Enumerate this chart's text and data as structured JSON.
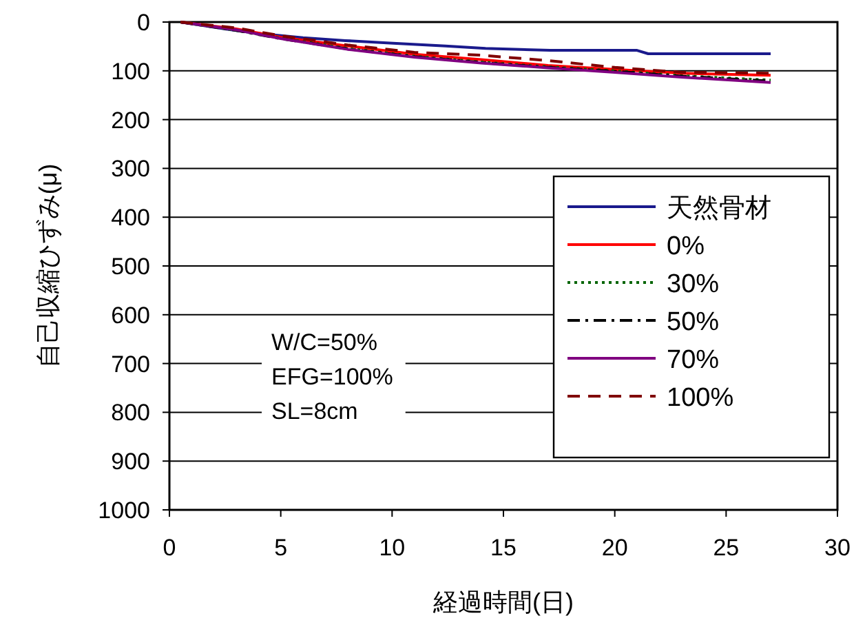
{
  "chart_data": {
    "type": "line",
    "xlabel": "経過時間(日)",
    "ylabel": "自己収縮ひずみ(μ)",
    "xlim": [
      0,
      30
    ],
    "xticks": [
      0,
      5,
      10,
      15,
      20,
      25,
      30
    ],
    "ylim": [
      1000,
      0
    ],
    "yticks": [
      0,
      100,
      200,
      300,
      400,
      500,
      600,
      700,
      800,
      900,
      1000
    ],
    "grid": "y",
    "legend": "bottom right",
    "annotations": [
      "W/C=50%",
      "EFG=100%",
      "SL=8cm"
    ],
    "series": [
      {
        "name": "天然骨材",
        "color": "#1a1a8c",
        "line_style": "solid",
        "x": [
          0.5,
          2.5,
          3.9,
          6,
          7.9,
          9.9,
          12.4,
          14.2,
          17.1,
          21,
          21.5,
          27
        ],
        "values": [
          0,
          14,
          23,
          32,
          38,
          43,
          49,
          54,
          58,
          58,
          65,
          65
        ]
      },
      {
        "name": "0%",
        "color": "#ff0000",
        "line_style": "solid",
        "x": [
          0.5,
          3,
          5,
          8,
          11,
          14,
          17,
          20,
          23,
          27
        ],
        "values": [
          0,
          14,
          31,
          49,
          66,
          77,
          89,
          97,
          105,
          109
        ]
      },
      {
        "name": "30%",
        "color": "#006400",
        "line_style": "dotted",
        "x": [
          0.5,
          3,
          5,
          8,
          11,
          14,
          17,
          20,
          23,
          27
        ],
        "values": [
          0,
          17,
          33,
          54,
          70,
          82,
          92,
          100,
          110,
          119
        ]
      },
      {
        "name": "50%",
        "color": "#000000",
        "line_style": "dashdot",
        "x": [
          0.5,
          3,
          5,
          8,
          11,
          14,
          17,
          20,
          23,
          27
        ],
        "values": [
          0,
          17,
          34,
          55,
          71,
          83,
          93,
          101,
          111,
          121
        ]
      },
      {
        "name": "70%",
        "color": "#800080",
        "line_style": "solid",
        "x": [
          0.5,
          3,
          5,
          8,
          11,
          14,
          17,
          20,
          23,
          27
        ],
        "values": [
          0,
          16,
          34,
          56,
          72,
          84,
          94,
          103,
          113,
          124
        ]
      },
      {
        "name": "100%",
        "color": "#800000",
        "line_style": "dashed",
        "x": [
          0.5,
          3,
          5,
          8,
          11,
          14,
          17,
          20,
          23,
          27
        ],
        "values": [
          0,
          12,
          28,
          47,
          62,
          68,
          79,
          93,
          103,
          105
        ]
      }
    ]
  }
}
